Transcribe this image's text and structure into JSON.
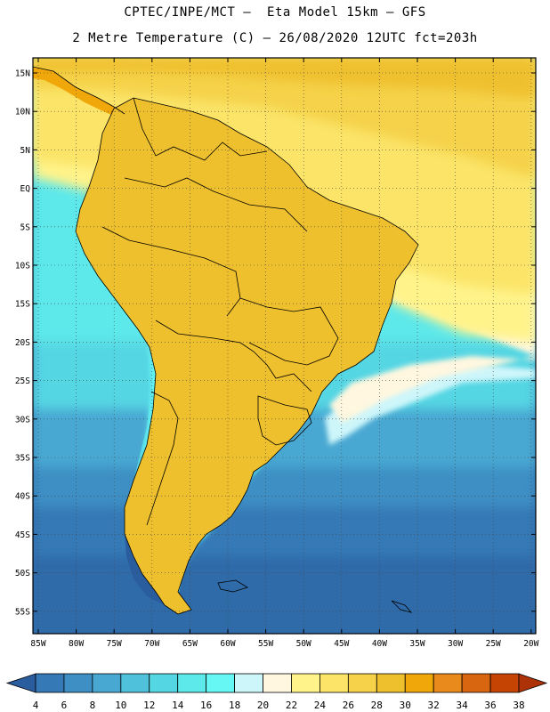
{
  "header": {
    "line1": "CPTEC/INPE/MCT –  Eta Model 15km – GFS",
    "line2": "2 Metre Temperature (C) – 26/08/2020 12UTC fct=203h"
  },
  "map": {
    "lat_labels": [
      "15N",
      "10N",
      "5N",
      "EQ",
      "5S",
      "10S",
      "15S",
      "20S",
      "25S",
      "30S",
      "35S",
      "40S",
      "45S",
      "50S",
      "55S"
    ],
    "lon_labels": [
      "85W",
      "80W",
      "75W",
      "70W",
      "65W",
      "60W",
      "55W",
      "50W",
      "45W",
      "40W",
      "35W",
      "30W",
      "25W",
      "20W"
    ]
  },
  "colorbar": {
    "levels": [
      "4",
      "6",
      "8",
      "10",
      "12",
      "14",
      "16",
      "18",
      "20",
      "22",
      "24",
      "26",
      "28",
      "30",
      "32",
      "34",
      "36",
      "38"
    ],
    "colors": [
      "#2a5d9e",
      "#3579b6",
      "#3e8fc4",
      "#48a8d2",
      "#4fc1db",
      "#55d6e3",
      "#5de8ea",
      "#66f7f5",
      "#cdf6fa",
      "#fff7df",
      "#fff38a",
      "#fbe468",
      "#f5d24a",
      "#efc02e",
      "#f0a70a",
      "#e98b1c",
      "#d86510",
      "#c54404",
      "#ae3208"
    ]
  },
  "colors": {
    "ocean_south": "#2f6aa9",
    "ocean_mid": "#45a6cf",
    "ocean_warm": "#5de8ea",
    "tropical_ocean": "#fbe468",
    "land_hot": "#efb02e",
    "land_cold": "#3a8ec4"
  }
}
